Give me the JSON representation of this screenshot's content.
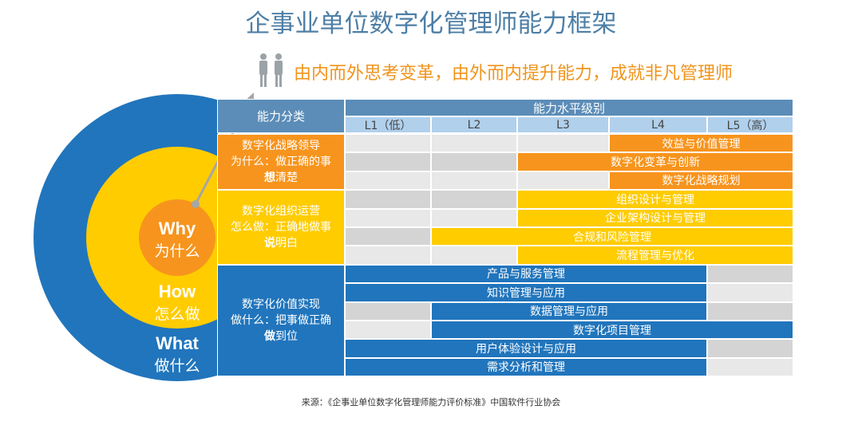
{
  "title": "企事业单位数字化管理师能力框架",
  "slogan": "由内而外思考变革，由外而内提升能力，成就非凡管理师",
  "circles": {
    "why": {
      "en": "Why",
      "zh": "为什么"
    },
    "how": {
      "en": "How",
      "zh": "怎么做"
    },
    "what": {
      "en": "What",
      "zh": "做什么"
    }
  },
  "colors": {
    "orange": "#f7941d",
    "yellow": "#ffcc00",
    "blue": "#2175bc",
    "header": "#5b8db8",
    "level": "#b0d0ec",
    "empty_light": "#e8e8e8",
    "empty_dark": "#d4d4d4"
  },
  "table": {
    "category_header": "能力分类",
    "level_header": "能力水平级别",
    "levels": [
      "L1（低）",
      "L2",
      "L3",
      "L4",
      "L5（高）"
    ],
    "groups": [
      {
        "name": "数字化战略领导",
        "line2": "为什么：做正确的事",
        "bold": "想",
        "rest": "清楚",
        "color": "orange",
        "items": [
          {
            "label": "效益与价值管理",
            "from": 4,
            "to": 5
          },
          {
            "label": "数字化变革与创新",
            "from": 3,
            "to": 5
          },
          {
            "label": "数字化战略规划",
            "from": 4,
            "to": 5
          }
        ]
      },
      {
        "name": "数字化组织运营",
        "line2": "怎么做：正确地做事",
        "bold": "说",
        "rest": "明白",
        "color": "yellow",
        "items": [
          {
            "label": "组织设计与管理",
            "from": 3,
            "to": 5
          },
          {
            "label": "企业架构设计与管理",
            "from": 3,
            "to": 5
          },
          {
            "label": "合规和风险管理",
            "from": 2,
            "to": 5
          },
          {
            "label": "流程管理与优化",
            "from": 3,
            "to": 5
          }
        ]
      },
      {
        "name": "数字化价值实现",
        "line2": "做什么：把事做正确",
        "bold": "做",
        "rest": "到位",
        "color": "blue",
        "items": [
          {
            "label": "产品与服务管理",
            "from": 1,
            "to": 4
          },
          {
            "label": "知识管理与应用",
            "from": 1,
            "to": 4
          },
          {
            "label": "数据管理与应用",
            "from": 2,
            "to": 4
          },
          {
            "label": "数字化项目管理",
            "from": 2,
            "to": 5
          },
          {
            "label": "用户体验设计与应用",
            "from": 1,
            "to": 4
          },
          {
            "label": "需求分析和管理",
            "from": 1,
            "to": 4
          }
        ]
      }
    ]
  },
  "source": "来源：《企事业单位数字化管理师能力评价标准》中国软件行业协会"
}
